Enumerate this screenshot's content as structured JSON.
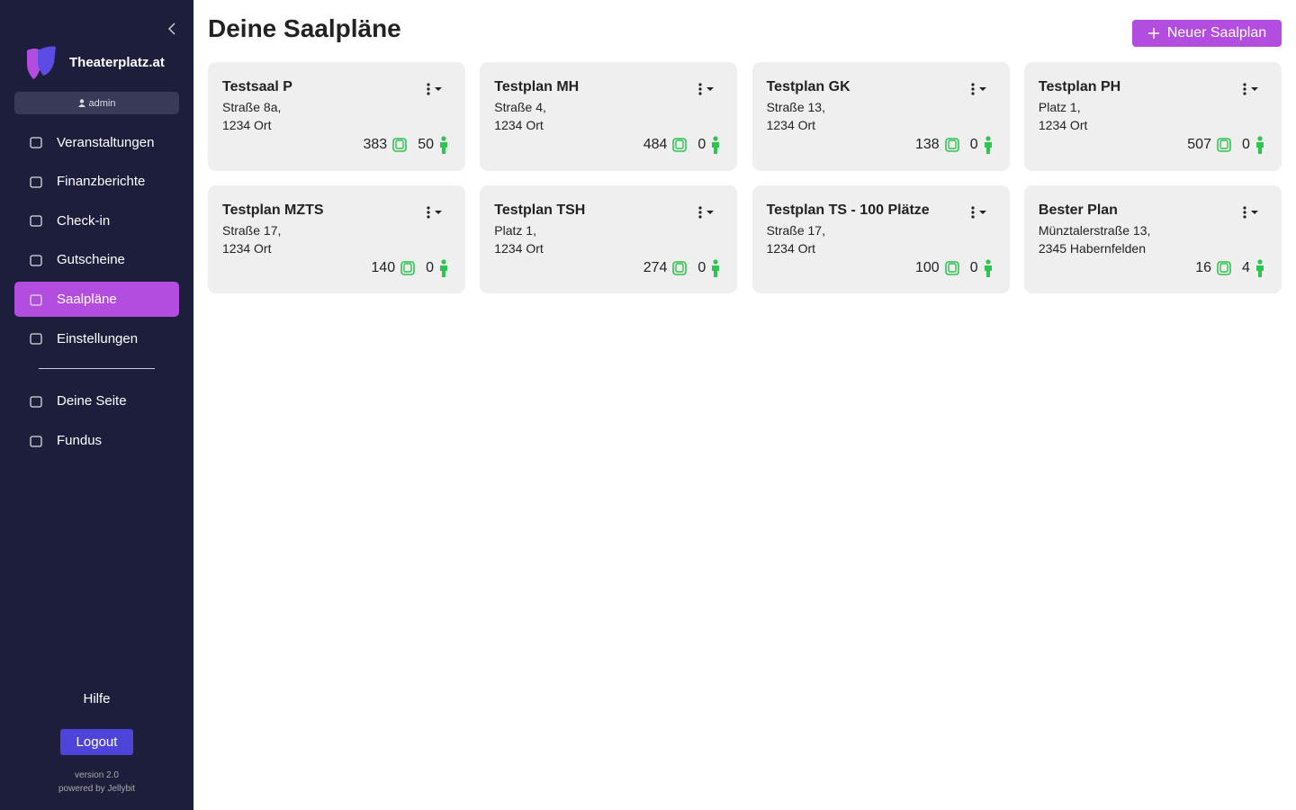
{
  "sidebar": {
    "brand": "Theaterplatz.at",
    "user": "admin",
    "nav": [
      "Veranstaltungen",
      "Finanzberichte",
      "Check-in",
      "Gutscheine",
      "Saalpläne",
      "Einstellungen"
    ],
    "nav_secondary": [
      "Deine Seite",
      "Fundus"
    ],
    "help": "Hilfe",
    "logout": "Logout",
    "version": "version 2.0",
    "powered": "powered by Jellybit"
  },
  "header": {
    "title": "Deine Saalpläne",
    "button": "Neuer Saalplan"
  },
  "cards": [
    {
      "name": "Testsaal P",
      "address1": "Straße 8a,",
      "address2": "1234 Ort",
      "seats": 383,
      "standing": 50
    },
    {
      "name": "Testplan MH",
      "address1": "Straße 4,",
      "address2": "1234 Ort",
      "seats": 484,
      "standing": 0
    },
    {
      "name": "Testplan GK",
      "address1": "Straße 13,",
      "address2": "1234 Ort",
      "seats": 138,
      "standing": 0
    },
    {
      "name": "Testplan PH",
      "address1": "Platz 1,",
      "address2": "1234 Ort",
      "seats": 507,
      "standing": 0
    },
    {
      "name": "Testplan MZTS",
      "address1": "Straße 17,",
      "address2": "1234 Ort",
      "seats": 140,
      "standing": 0
    },
    {
      "name": "Testplan TSH",
      "address1": "Platz 1,",
      "address2": "1234 Ort",
      "seats": 274,
      "standing": 0
    },
    {
      "name": "Testplan TS - 100 Plätze",
      "address1": "Straße 17,",
      "address2": "1234 Ort",
      "seats": 100,
      "standing": 0
    },
    {
      "name": "Bester Plan",
      "address1": "Münztalerstraße 13,",
      "address2": "2345 Habernfelden",
      "seats": 16,
      "standing": 4
    }
  ]
}
